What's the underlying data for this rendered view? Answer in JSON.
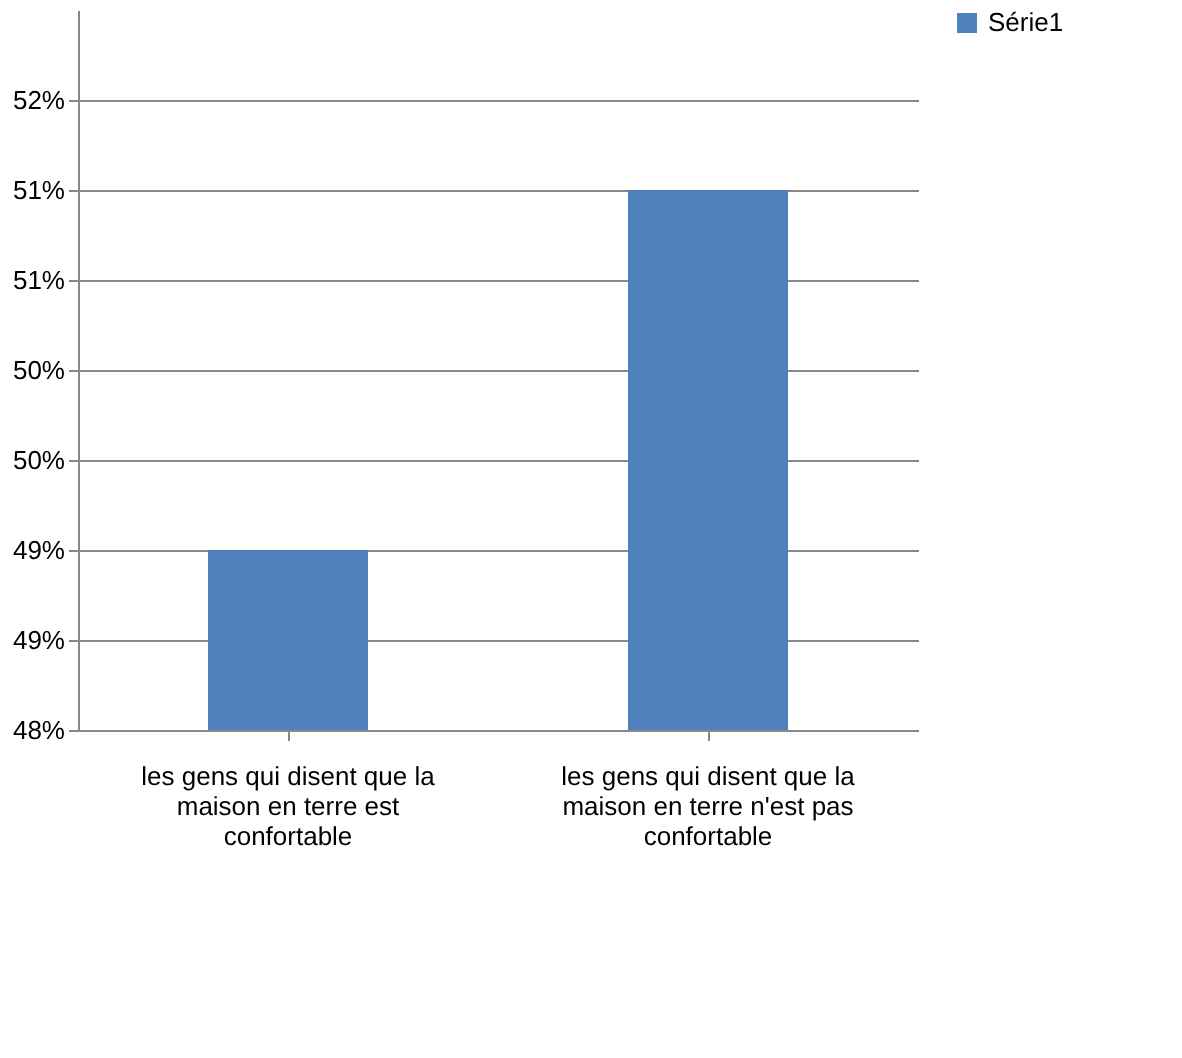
{
  "chart_data": {
    "type": "bar",
    "categories": [
      "les gens qui disent que la maison en terre est confortable",
      "les gens qui disent que la maison en terre n'est pas confortable"
    ],
    "series": [
      {
        "name": "Série1",
        "color": "#4f81bd",
        "values": [
          49,
          51
        ]
      }
    ],
    "ylim": [
      48,
      52
    ],
    "yticks": [
      {
        "value": 48,
        "label": "48%"
      },
      {
        "value": 48.5,
        "label": "49%"
      },
      {
        "value": 49,
        "label": "49%"
      },
      {
        "value": 49.5,
        "label": "50%"
      },
      {
        "value": 50,
        "label": "50%"
      },
      {
        "value": 50.5,
        "label": "51%"
      },
      {
        "value": 51,
        "label": "51%"
      },
      {
        "value": 51.5,
        "label": "52%"
      }
    ],
    "grid": "y",
    "legend": "right"
  }
}
